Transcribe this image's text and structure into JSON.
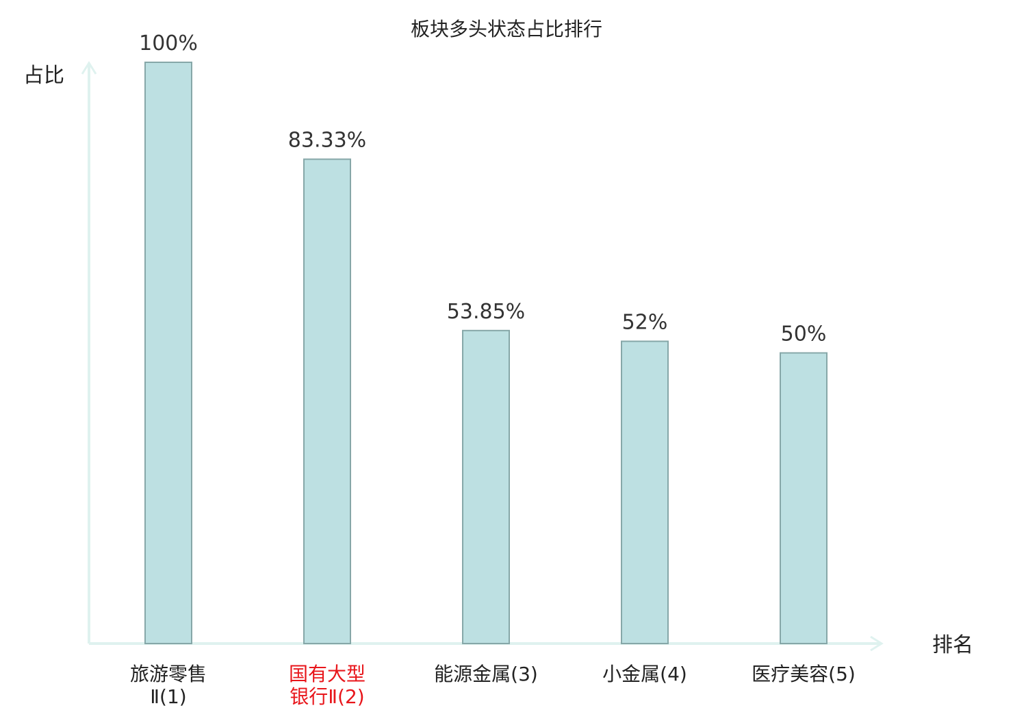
{
  "chart_data": {
    "type": "bar",
    "title": "板块多头状态占比排行",
    "ylabel": "占比",
    "xlabel": "排名",
    "ylim": [
      0,
      100
    ],
    "grid": false,
    "categories": [
      {
        "lines": [
          "旅游零售",
          "Ⅱ(1)"
        ],
        "highlight": false
      },
      {
        "lines": [
          "国有大型",
          "银行Ⅱ(2)"
        ],
        "highlight": true
      },
      {
        "lines": [
          "能源金属(3)"
        ],
        "highlight": false
      },
      {
        "lines": [
          "小金属(4)"
        ],
        "highlight": false
      },
      {
        "lines": [
          "医疗美容(5)"
        ],
        "highlight": false
      }
    ],
    "values": [
      100,
      83.33,
      53.85,
      52,
      50
    ],
    "value_labels": [
      "100%",
      "83.33%",
      "53.85%",
      "52%",
      "50%"
    ],
    "colors": {
      "bar_fill": "#bde0e2",
      "bar_stroke": "#86a7a8",
      "axis": "#dff2ef",
      "text": "#222222",
      "highlight_text": "#e8161b"
    }
  }
}
